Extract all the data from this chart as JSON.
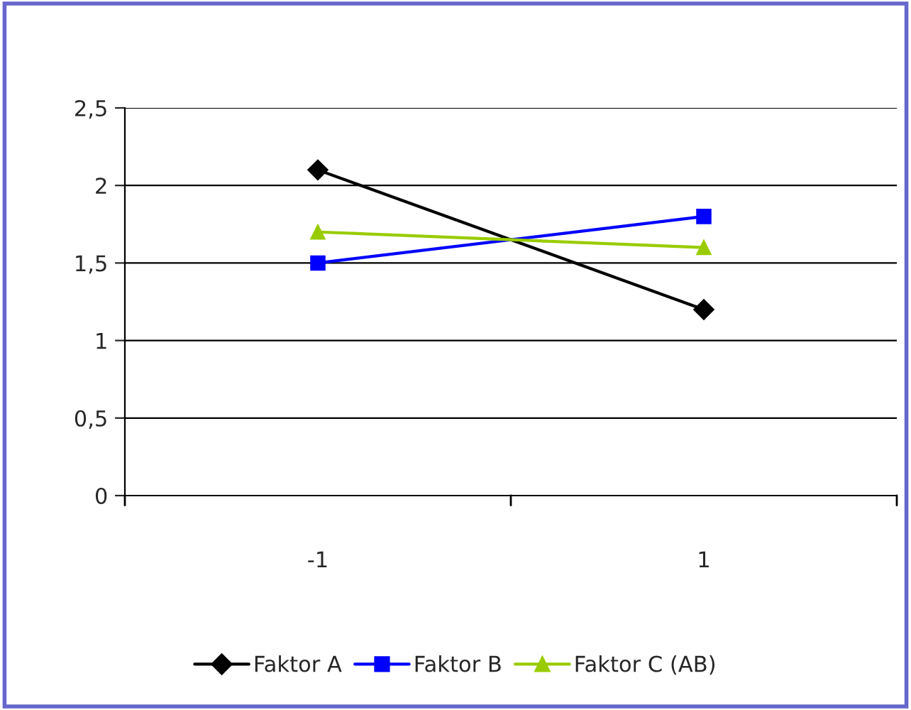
{
  "chart_data": {
    "type": "line",
    "categories": [
      "-1",
      "1"
    ],
    "series": [
      {
        "name": "Faktor A",
        "color": "#000000",
        "marker": "diamond",
        "values": [
          2.1,
          1.2
        ]
      },
      {
        "name": "Faktor B",
        "color": "#0000ff",
        "marker": "square",
        "values": [
          1.5,
          1.8
        ]
      },
      {
        "name": "Faktor C (AB)",
        "color": "#99cc00",
        "marker": "triangle",
        "values": [
          1.7,
          1.6
        ]
      }
    ],
    "ylim": [
      0,
      2.5
    ],
    "yticks": [
      0,
      {
        "value": 0.5,
        "label": "0,5"
      },
      1,
      {
        "value": 1.5,
        "label": "1,5"
      },
      2,
      {
        "value": 2.5,
        "label": "2,5"
      }
    ],
    "grid": "y",
    "legend": "bottom",
    "line_style": "solid"
  }
}
